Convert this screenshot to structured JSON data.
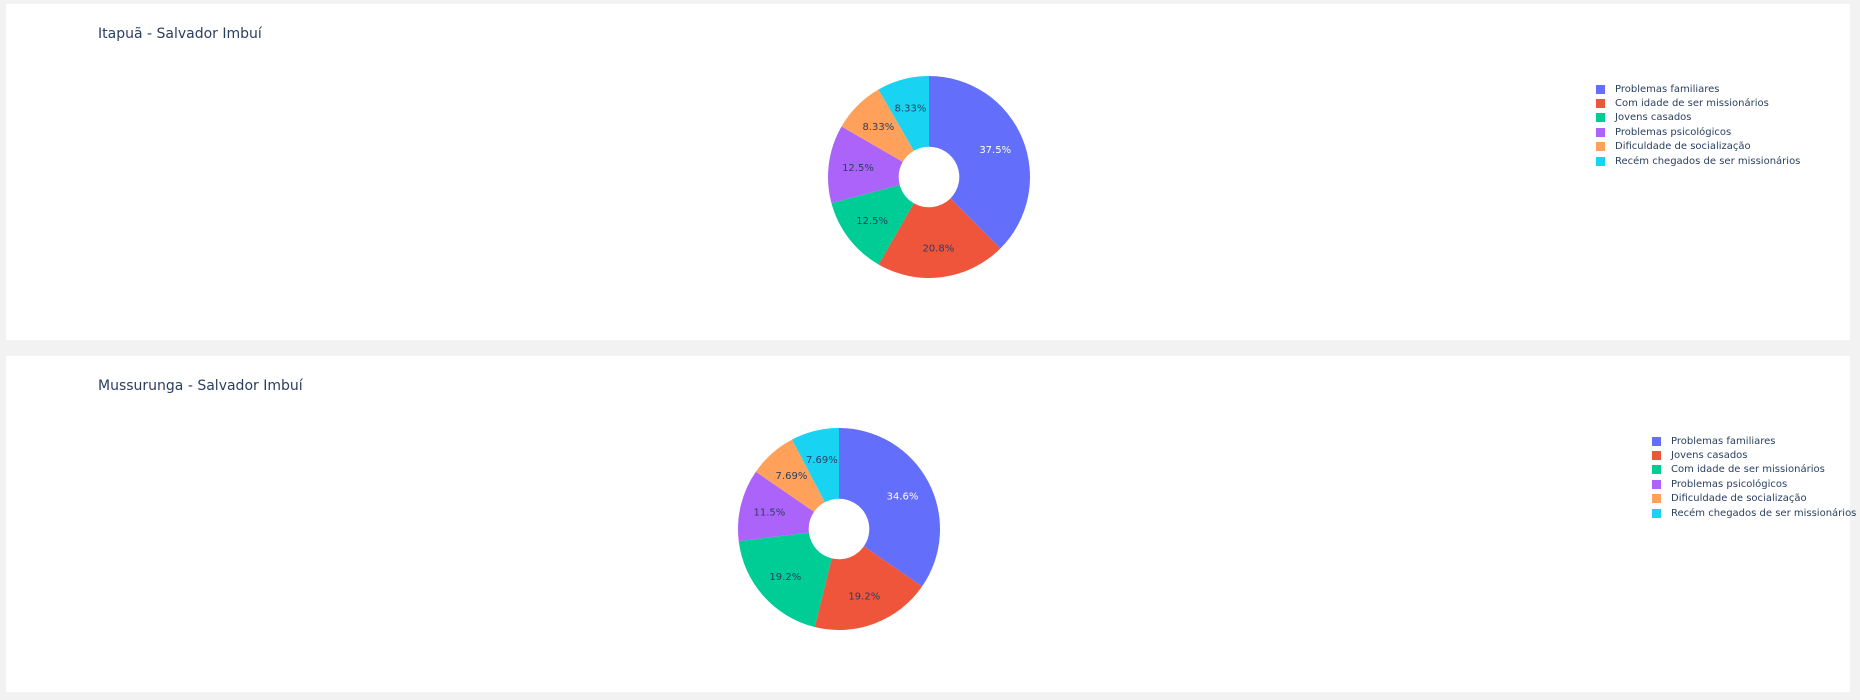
{
  "chart_data": [
    {
      "type": "pie",
      "hole": 0.3,
      "title": "Itapuã - Salvador Imbuí",
      "legend_position": "right",
      "slices": [
        {
          "label": "Problemas familiares",
          "value": 37.5,
          "text": "37.5%",
          "color": "#636efa"
        },
        {
          "label": "Com idade de ser missionários",
          "value": 20.8,
          "text": "20.8%",
          "color": "#EF553B"
        },
        {
          "label": "Jovens casados",
          "value": 12.5,
          "text": "12.5%",
          "color": "#00cc96"
        },
        {
          "label": "Problemas psicológicos",
          "value": 12.5,
          "text": "12.5%",
          "color": "#ab63fa"
        },
        {
          "label": "Dificuldade de socialização",
          "value": 8.33,
          "text": "8.33%",
          "color": "#FFA15A"
        },
        {
          "label": "Recém chegados de ser missionários",
          "value": 8.33,
          "text": "8.33%",
          "color": "#19d3f3"
        }
      ]
    },
    {
      "type": "pie",
      "hole": 0.3,
      "title": "Mussurunga - Salvador Imbuí",
      "legend_position": "right",
      "slices": [
        {
          "label": "Problemas familiares",
          "value": 34.6,
          "text": "34.6%",
          "color": "#636efa"
        },
        {
          "label": "Jovens casados",
          "value": 19.2,
          "text": "19.2%",
          "color": "#EF553B"
        },
        {
          "label": "Com idade de ser missionários",
          "value": 19.2,
          "text": "19.2%",
          "color": "#00cc96"
        },
        {
          "label": "Problemas psicológicos",
          "value": 11.5,
          "text": "11.5%",
          "color": "#ab63fa"
        },
        {
          "label": "Dificuldade de socialização",
          "value": 7.69,
          "text": "7.69%",
          "color": "#FFA15A"
        },
        {
          "label": "Recém chegados de ser missionários",
          "value": 7.69,
          "text": "7.69%",
          "color": "#19d3f3"
        }
      ]
    }
  ]
}
